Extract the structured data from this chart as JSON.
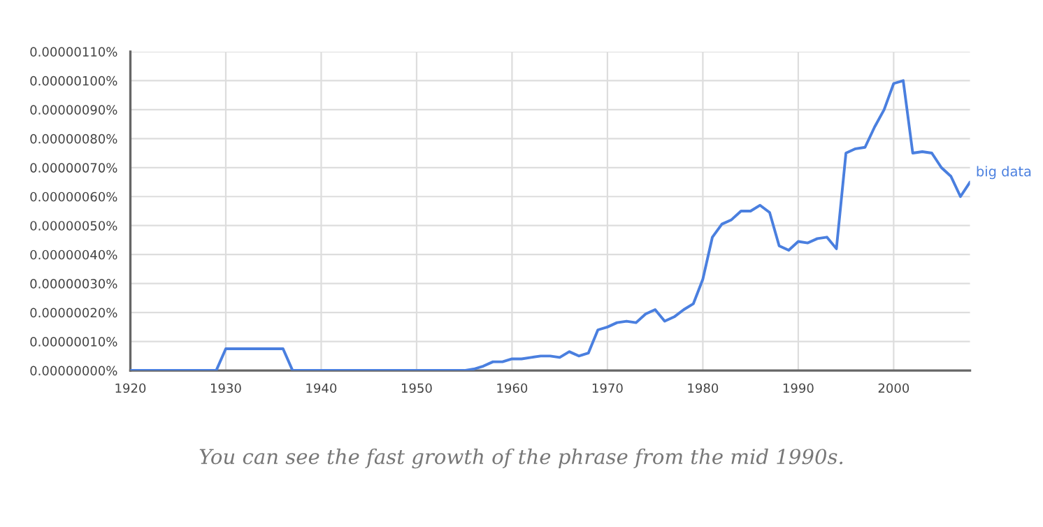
{
  "chart_data": {
    "type": "line",
    "x": [
      1920,
      1921,
      1922,
      1923,
      1924,
      1925,
      1926,
      1927,
      1928,
      1929,
      1930,
      1931,
      1932,
      1933,
      1934,
      1935,
      1936,
      1937,
      1938,
      1939,
      1940,
      1941,
      1942,
      1943,
      1944,
      1945,
      1946,
      1947,
      1948,
      1949,
      1950,
      1951,
      1952,
      1953,
      1954,
      1955,
      1956,
      1957,
      1958,
      1959,
      1960,
      1961,
      1962,
      1963,
      1964,
      1965,
      1966,
      1967,
      1968,
      1969,
      1970,
      1971,
      1972,
      1973,
      1974,
      1975,
      1976,
      1977,
      1978,
      1979,
      1980,
      1981,
      1982,
      1983,
      1984,
      1985,
      1986,
      1987,
      1988,
      1989,
      1990,
      1991,
      1992,
      1993,
      1994,
      1995,
      1996,
      1997,
      1998,
      1999,
      2000,
      2001,
      2002,
      2003,
      2004,
      2005,
      2006,
      2007,
      2008
    ],
    "series": [
      {
        "name": "big data",
        "color": "#4a7fdf",
        "values": [
          0,
          0,
          0,
          0,
          0,
          0,
          0,
          0,
          0,
          0,
          7.5e-08,
          7.5e-08,
          7.5e-08,
          7.5e-08,
          7.5e-08,
          7.5e-08,
          7.5e-08,
          0,
          0,
          0,
          0,
          0,
          0,
          0,
          0,
          0,
          0,
          0,
          0,
          0,
          0,
          0,
          0,
          0,
          0,
          0,
          5e-09,
          1.5e-08,
          3e-08,
          3e-08,
          4e-08,
          4e-08,
          4.5e-08,
          5e-08,
          5e-08,
          4.5e-08,
          6.5e-08,
          5e-08,
          6e-08,
          1.4e-07,
          1.5e-07,
          1.65e-07,
          1.7e-07,
          1.65e-07,
          1.95e-07,
          2.1e-07,
          1.7e-07,
          1.85e-07,
          2.1e-07,
          2.3e-07,
          3.15e-07,
          4.6e-07,
          5.05e-07,
          5.2e-07,
          5.5e-07,
          5.5e-07,
          5.7e-07,
          5.45e-07,
          4.3e-07,
          4.15e-07,
          4.45e-07,
          4.4e-07,
          4.55e-07,
          4.6e-07,
          4.2e-07,
          7.5e-07,
          7.65e-07,
          7.7e-07,
          8.4e-07,
          9e-07,
          9.9e-07,
          1e-06,
          7.5e-07,
          7.55e-07,
          7.5e-07,
          7e-07,
          6.7e-07,
          6e-07,
          6.5e-07
        ]
      }
    ],
    "xlim": [
      1920,
      2008
    ],
    "xticks": [
      1920,
      1930,
      1940,
      1950,
      1960,
      1970,
      1980,
      1990,
      2000
    ],
    "ylim": [
      0,
      1.1e-06
    ],
    "yticks": [
      {
        "value": 0,
        "label": "0.00000000%"
      },
      {
        "value": 1e-07,
        "label": "0.00000010%"
      },
      {
        "value": 2e-07,
        "label": "0.00000020%"
      },
      {
        "value": 3e-07,
        "label": "0.00000030%"
      },
      {
        "value": 4e-07,
        "label": "0.00000040%"
      },
      {
        "value": 5e-07,
        "label": "0.00000050%"
      },
      {
        "value": 6e-07,
        "label": "0.00000060%"
      },
      {
        "value": 7e-07,
        "label": "0.00000070%"
      },
      {
        "value": 8e-07,
        "label": "0.00000080%"
      },
      {
        "value": 9e-07,
        "label": "0.00000090%"
      },
      {
        "value": 1e-06,
        "label": "0.00000100%"
      },
      {
        "value": 1.1e-06,
        "label": "0.00000110%"
      }
    ],
    "grid": true,
    "legend": false,
    "line_style": "solid",
    "annotations": [
      "You can see the fast growth of the phrase from the mid 1990s."
    ]
  }
}
